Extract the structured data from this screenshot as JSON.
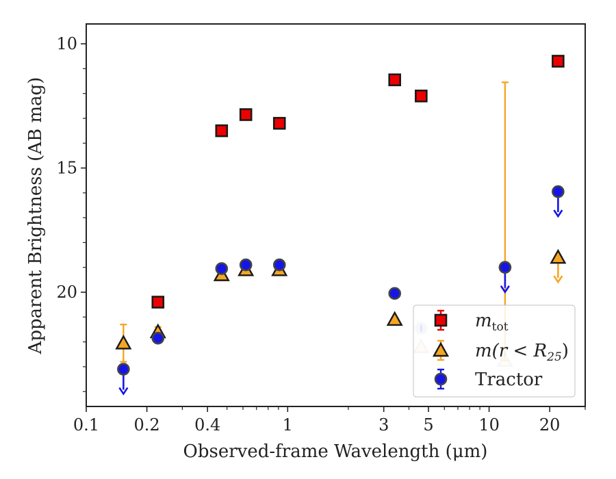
{
  "chart_data": {
    "type": "scatter",
    "xlabel": "Observed-frame Wavelength (μm)",
    "ylabel": "Apparent Brightness (AB mag)",
    "xscale": "log",
    "xlim": [
      0.1,
      30
    ],
    "ylim": [
      24.6,
      9.2
    ],
    "y_inverted": true,
    "grid": false,
    "legend_position": "lower-right",
    "x_ticks": [
      {
        "value": 0.1,
        "label": "0.1"
      },
      {
        "value": 0.2,
        "label": "0.2"
      },
      {
        "value": 0.4,
        "label": "0.4"
      },
      {
        "value": 1,
        "label": "1"
      },
      {
        "value": 3,
        "label": "3"
      },
      {
        "value": 5,
        "label": "5"
      },
      {
        "value": 10,
        "label": "10"
      },
      {
        "value": 20,
        "label": "20"
      }
    ],
    "x_minor_ticks": [
      0.3,
      0.5,
      0.6,
      0.7,
      0.8,
      0.9,
      2,
      4,
      6,
      7,
      8,
      9,
      30
    ],
    "y_ticks": [
      {
        "value": 10,
        "label": "10"
      },
      {
        "value": 15,
        "label": "15"
      },
      {
        "value": 20,
        "label": "20"
      }
    ],
    "y_minor_ticks": [
      11,
      12,
      13,
      14,
      16,
      17,
      18,
      19,
      21,
      22,
      23,
      24
    ],
    "series": [
      {
        "name": "m_tot",
        "label_main": "m",
        "label_sub": "tot",
        "marker": "square",
        "color": "#ee0000",
        "edge": "#1a1a1a",
        "points": [
          {
            "x": 0.227,
            "y": 20.4
          },
          {
            "x": 0.47,
            "y": 13.5
          },
          {
            "x": 0.62,
            "y": 12.85
          },
          {
            "x": 0.91,
            "y": 13.2
          },
          {
            "x": 3.4,
            "y": 11.45
          },
          {
            "x": 4.6,
            "y": 12.1
          },
          {
            "x": 22.0,
            "y": 10.7
          }
        ]
      },
      {
        "name": "m(r<R25)",
        "label_main": "m(r < R",
        "label_sub": "25",
        "label_tail": ")",
        "marker": "triangle",
        "color": "#f5a623",
        "edge": "#1a1a1a",
        "points": [
          {
            "x": 0.153,
            "y": 22.05,
            "err_low": 21.3,
            "err_high": 22.8
          },
          {
            "x": 0.227,
            "y": 21.6,
            "err_low": 21.4,
            "err_high": 21.8
          },
          {
            "x": 0.47,
            "y": 19.3
          },
          {
            "x": 0.62,
            "y": 19.1
          },
          {
            "x": 0.91,
            "y": 19.1
          },
          {
            "x": 3.4,
            "y": 21.1
          },
          {
            "x": 4.6,
            "y": 22.2,
            "faded": true
          },
          {
            "x": 12.0,
            "y": 22.75,
            "err_low": 11.55,
            "faded": true
          },
          {
            "x": 22.0,
            "y": 18.6,
            "upper_limit": true
          }
        ]
      },
      {
        "name": "Tractor",
        "label_main": "Tractor",
        "marker": "circle",
        "color": "#1515e8",
        "edge": "#444444",
        "points": [
          {
            "x": 0.153,
            "y": 23.1,
            "upper_limit": true
          },
          {
            "x": 0.227,
            "y": 21.85
          },
          {
            "x": 0.47,
            "y": 19.05
          },
          {
            "x": 0.62,
            "y": 18.9
          },
          {
            "x": 0.91,
            "y": 18.9
          },
          {
            "x": 3.4,
            "y": 20.05
          },
          {
            "x": 4.6,
            "y": 21.45,
            "faded": true
          },
          {
            "x": 12.0,
            "y": 19.0,
            "upper_limit": true
          },
          {
            "x": 22.0,
            "y": 15.95,
            "upper_limit": true
          }
        ]
      }
    ]
  }
}
